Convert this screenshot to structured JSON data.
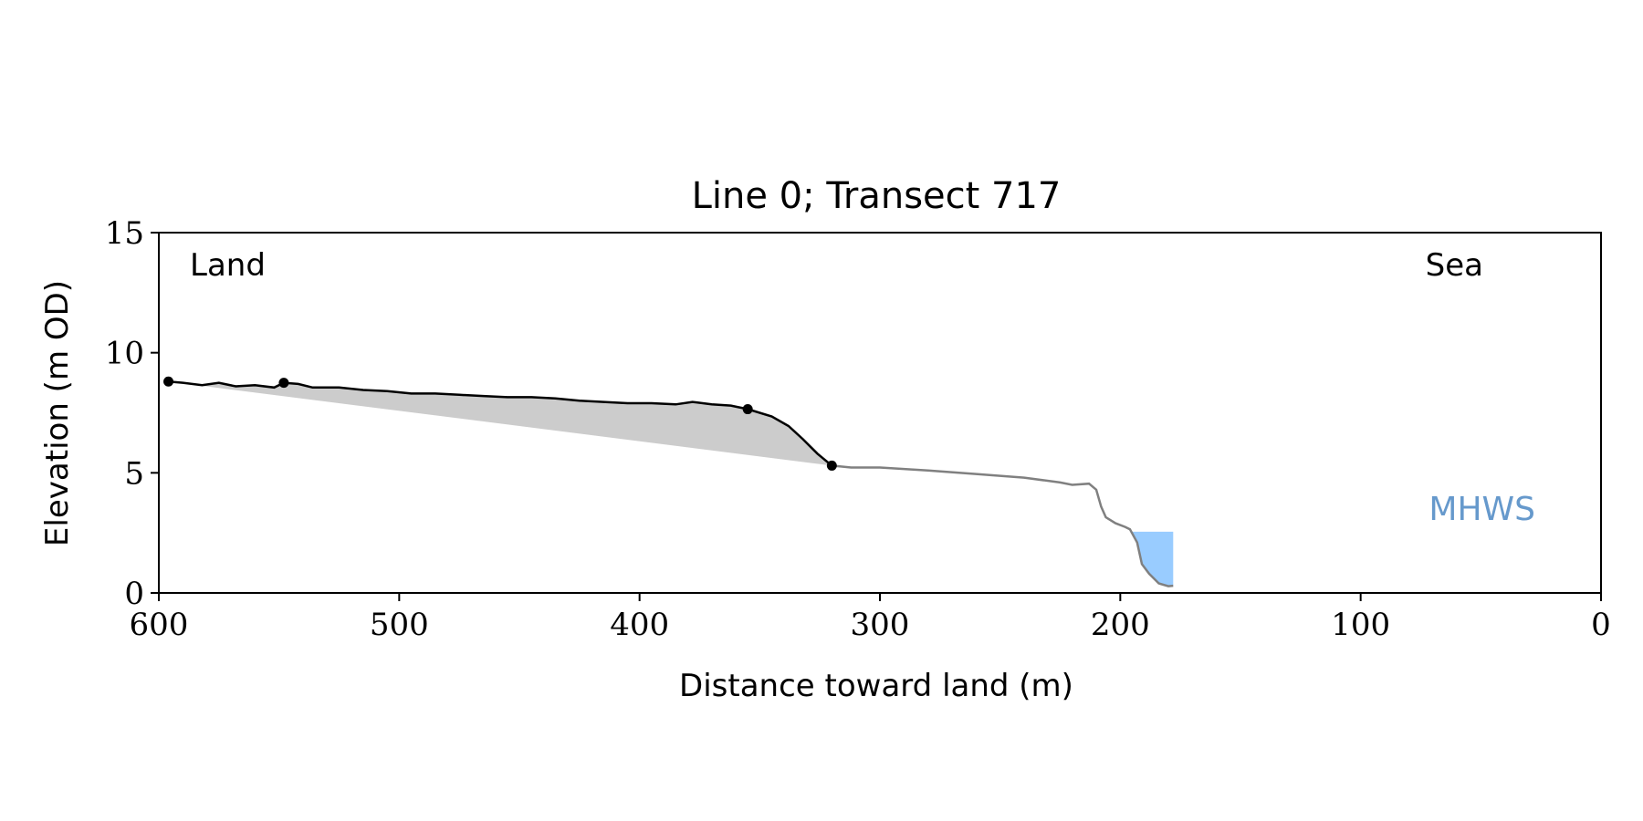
{
  "chart_data": {
    "type": "line",
    "title": "Line 0; Transect 717",
    "xlabel": "Distance toward land (m)",
    "ylabel": "Elevation (m OD)",
    "xlim": [
      600,
      0
    ],
    "ylim": [
      0,
      15
    ],
    "x_reversed": true,
    "x_ticks": [
      600,
      500,
      400,
      300,
      200,
      100,
      0
    ],
    "y_ticks": [
      0,
      5,
      10,
      15
    ],
    "grid": false,
    "annotations": {
      "land": "Land",
      "sea": "Sea",
      "mhws": "MHWS"
    },
    "colors": {
      "cliff_profile": "#000000",
      "beach_profile": "#808080",
      "cliff_fill": "#cccccc",
      "water_fill": "#99ccff",
      "mhws_label": "#6699cc"
    },
    "series": [
      {
        "role": "cliff_profile",
        "points": [
          [
            596,
            8.8
          ],
          [
            590,
            8.75
          ],
          [
            582,
            8.65
          ],
          [
            575,
            8.75
          ],
          [
            568,
            8.6
          ],
          [
            560,
            8.65
          ],
          [
            552,
            8.55
          ],
          [
            548,
            8.75
          ],
          [
            542,
            8.7
          ],
          [
            536,
            8.55
          ],
          [
            525,
            8.55
          ],
          [
            515,
            8.45
          ],
          [
            505,
            8.4
          ],
          [
            495,
            8.3
          ],
          [
            485,
            8.3
          ],
          [
            475,
            8.25
          ],
          [
            465,
            8.2
          ],
          [
            455,
            8.15
          ],
          [
            445,
            8.15
          ],
          [
            435,
            8.1
          ],
          [
            425,
            8.0
          ],
          [
            415,
            7.95
          ],
          [
            405,
            7.9
          ],
          [
            395,
            7.9
          ],
          [
            385,
            7.85
          ],
          [
            378,
            7.95
          ],
          [
            370,
            7.85
          ],
          [
            362,
            7.8
          ],
          [
            355,
            7.65
          ],
          [
            345,
            7.35
          ],
          [
            338,
            6.95
          ],
          [
            332,
            6.4
          ],
          [
            326,
            5.8
          ],
          [
            320,
            5.3
          ]
        ]
      },
      {
        "role": "beach_profile",
        "points": [
          [
            320,
            5.3
          ],
          [
            312,
            5.22
          ],
          [
            300,
            5.22
          ],
          [
            280,
            5.1
          ],
          [
            260,
            4.95
          ],
          [
            240,
            4.8
          ],
          [
            225,
            4.6
          ],
          [
            220,
            4.5
          ],
          [
            213,
            4.55
          ],
          [
            210,
            4.3
          ],
          [
            208,
            3.6
          ],
          [
            206,
            3.15
          ],
          [
            202,
            2.9
          ],
          [
            198,
            2.75
          ],
          [
            196,
            2.65
          ],
          [
            193,
            2.1
          ],
          [
            191,
            1.2
          ],
          [
            188,
            0.8
          ],
          [
            184,
            0.4
          ],
          [
            180,
            0.28
          ],
          [
            178,
            0.3
          ]
        ]
      },
      {
        "role": "baseline_profile",
        "points": [
          [
            596,
            8.8
          ],
          [
            320,
            5.3
          ]
        ]
      },
      {
        "role": "water_region",
        "level": 2.55,
        "x_end": 178
      }
    ],
    "markers": [
      [
        596,
        8.8
      ],
      [
        548,
        8.75
      ],
      [
        355,
        7.65
      ],
      [
        320,
        5.3
      ]
    ]
  }
}
